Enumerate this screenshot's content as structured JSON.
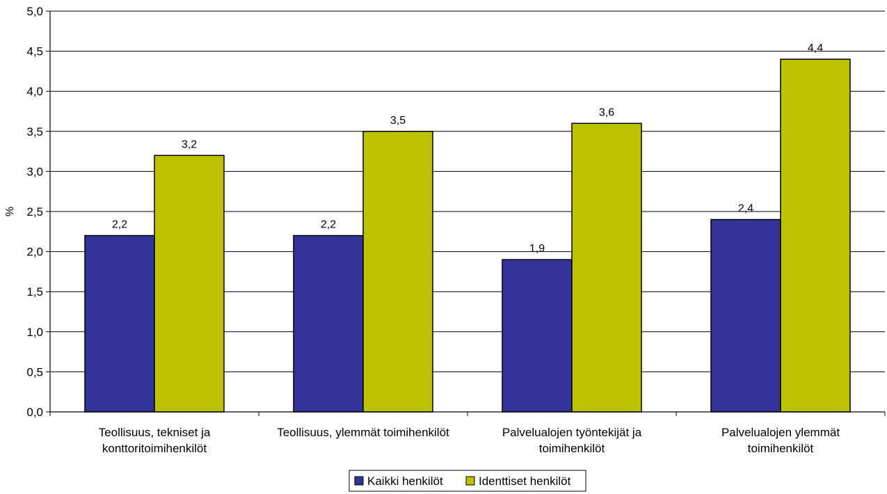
{
  "chart_data": {
    "type": "bar",
    "categories": [
      [
        "Teollisuus, tekniset ja",
        "konttoritoimihenkilöt"
      ],
      [
        "Teollisuus, ylemmät toimihenkilöt"
      ],
      [
        "Palvelualojen työntekijät ja",
        "toimihenkilöt"
      ],
      [
        "Palvelualojen ylemmät",
        "toimihenkilöt"
      ]
    ],
    "series": [
      {
        "name": "Kaikki henkilöt",
        "color": "#333399",
        "values": [
          2.2,
          2.2,
          1.9,
          2.4
        ],
        "labels": [
          "2,2",
          "2,2",
          "1,9",
          "2,4"
        ]
      },
      {
        "name": "Identtiset henkilöt",
        "color": "#BCC200",
        "values": [
          3.2,
          3.5,
          3.6,
          4.4
        ],
        "labels": [
          "3,2",
          "3,5",
          "3,6",
          "4,4"
        ]
      }
    ],
    "ylabel": "%",
    "ylim": [
      0,
      5
    ],
    "yticks": [
      0,
      0.5,
      1,
      1.5,
      2,
      2.5,
      3,
      3.5,
      4,
      4.5,
      5
    ],
    "ytick_labels": [
      "0,0",
      "0,5",
      "1,0",
      "1,5",
      "2,0",
      "2,5",
      "3,0",
      "3,5",
      "4,0",
      "4,5",
      "5,0"
    ],
    "grid": true,
    "legend_position": "bottom-center"
  }
}
